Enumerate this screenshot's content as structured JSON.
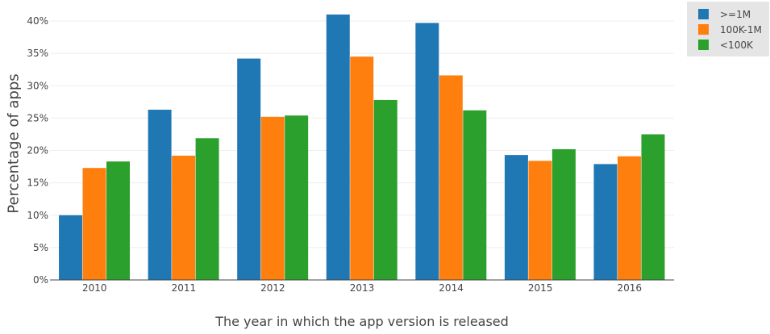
{
  "chart_data": {
    "type": "bar",
    "categories": [
      "2010",
      "2011",
      "2012",
      "2013",
      "2014",
      "2015",
      "2016"
    ],
    "series": [
      {
        "name": ">=1M",
        "color": "#1f77b4",
        "values": [
          10.0,
          26.3,
          34.2,
          41.0,
          39.7,
          19.3,
          17.9
        ]
      },
      {
        "name": "100K-1M",
        "color": "#ff7f0e",
        "values": [
          17.3,
          19.2,
          25.2,
          34.5,
          31.6,
          18.4,
          19.1
        ]
      },
      {
        "name": "<100K",
        "color": "#2ca02c",
        "values": [
          18.3,
          21.9,
          25.4,
          27.8,
          26.2,
          20.2,
          22.5
        ]
      }
    ],
    "xlabel": "The year in which the app version is released",
    "ylabel": "Percentage of apps",
    "ylim": [
      0,
      42
    ],
    "yticks": [
      0,
      5,
      10,
      15,
      20,
      25,
      30,
      35,
      40
    ],
    "ytick_suffix": "%",
    "grid": true,
    "legend_position": "top-right"
  }
}
